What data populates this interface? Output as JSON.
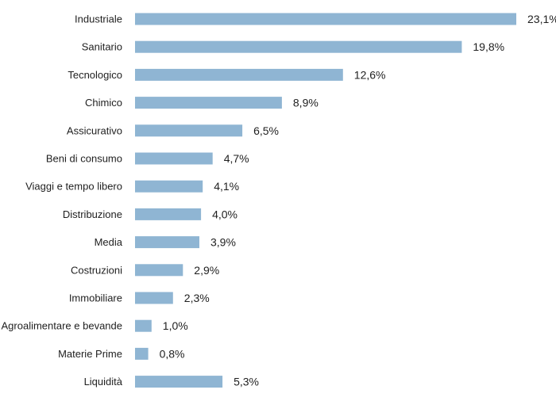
{
  "chart_data": {
    "type": "bar",
    "orientation": "horizontal",
    "categories": [
      "Industriale",
      "Sanitario",
      "Tecnologico",
      "Chimico",
      "Assicurativo",
      "Beni di consumo",
      "Viaggi e tempo libero",
      "Distribuzione",
      "Media",
      "Costruzioni",
      "Immobiliare",
      "Agroalimentare e bevande",
      "Materie Prime",
      "Liquidità"
    ],
    "values": [
      23.1,
      19.8,
      12.6,
      8.9,
      6.5,
      4.7,
      4.1,
      4.0,
      3.9,
      2.9,
      2.3,
      1.0,
      0.8,
      5.3
    ],
    "value_labels": [
      "23,1%",
      "19,8%",
      "12,6%",
      "8,9%",
      "6,5%",
      "4,7%",
      "4,1%",
      "4,0%",
      "3,9%",
      "2,9%",
      "2,3%",
      "1,0%",
      "0,8%",
      "5,3%"
    ],
    "unit": "%",
    "xlim": [
      0,
      23.1
    ],
    "grid": false,
    "bar_color": "#8fb5d3",
    "text_color": "#1f1f1f"
  }
}
